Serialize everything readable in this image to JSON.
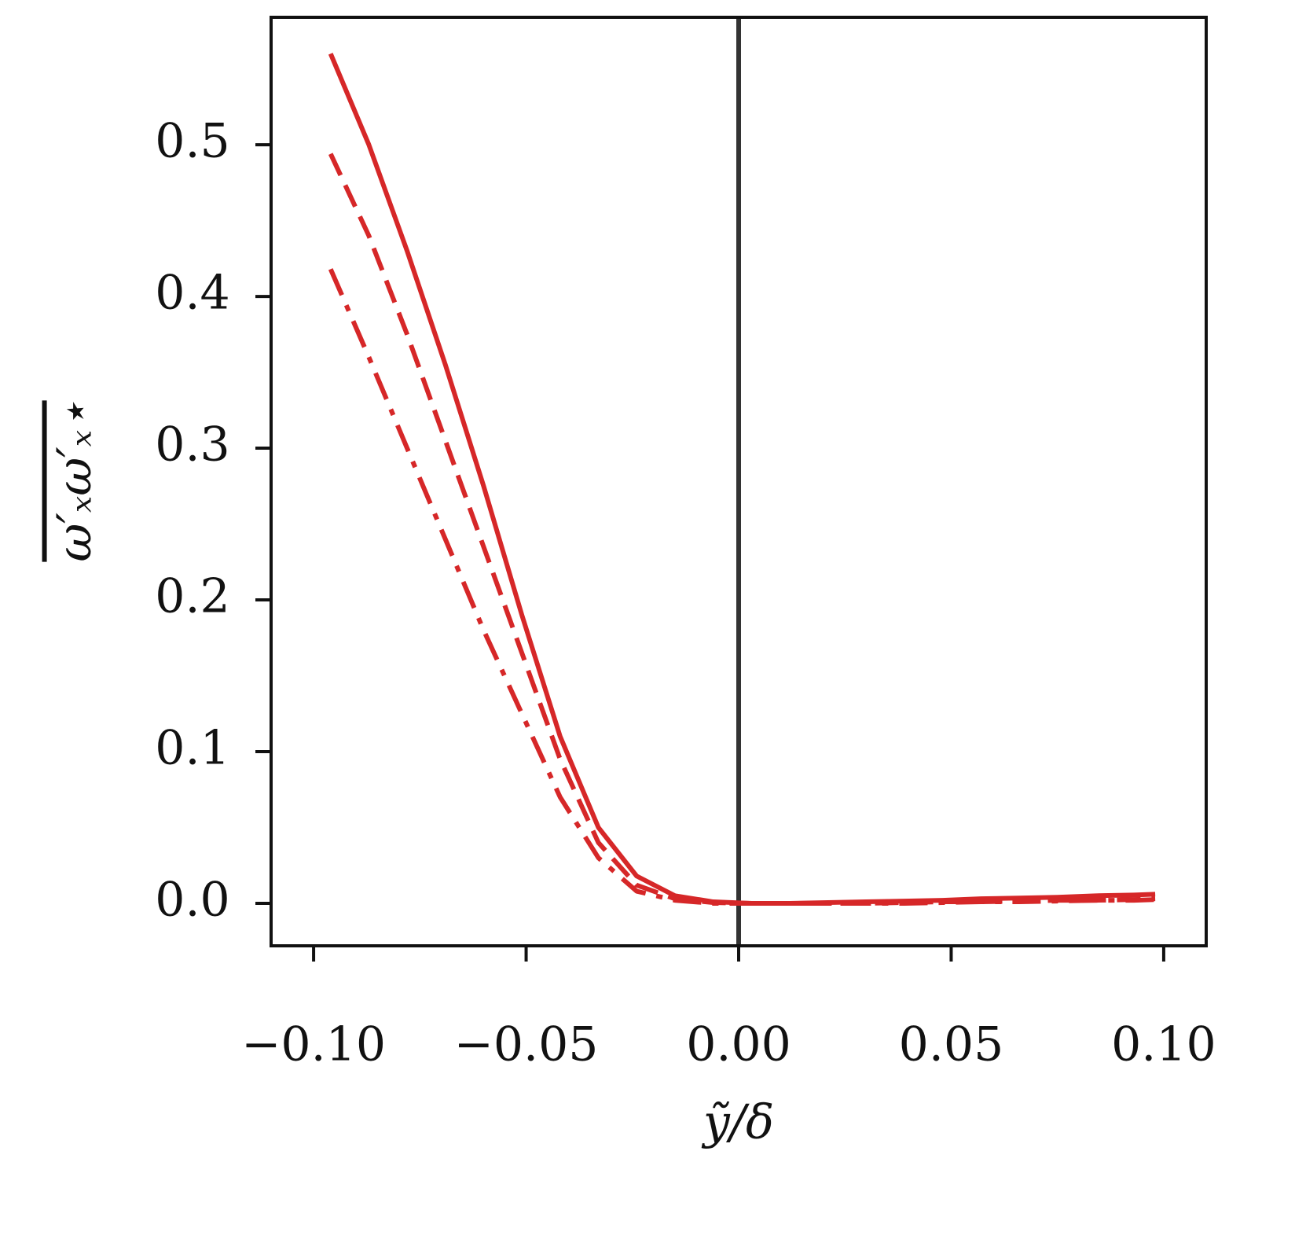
{
  "chart_data": {
    "type": "line",
    "xlabel": "ỹ/δ",
    "ylabel": "ω′ₓω′ₓ⋆",
    "x": [
      -0.096,
      -0.087,
      -0.078,
      -0.069,
      -0.06,
      -0.051,
      -0.042,
      -0.033,
      -0.024,
      -0.015,
      -0.006,
      0.003,
      0.012,
      0.021,
      0.03,
      0.039,
      0.048,
      0.057,
      0.066,
      0.075,
      0.084,
      0.093,
      0.098
    ],
    "series": [
      {
        "color": "#d62728",
        "style": "solid",
        "values": [
          0.56,
          0.5,
          0.43,
          0.355,
          0.275,
          0.19,
          0.11,
          0.05,
          0.018,
          0.005,
          0.001,
          0,
          0,
          0.0005,
          0.001,
          0.0015,
          0.002,
          0.003,
          0.0035,
          0.004,
          0.005,
          0.0055,
          0.006
        ]
      },
      {
        "color": "#d62728",
        "style": "dashed",
        "values": [
          0.494,
          0.44,
          0.375,
          0.305,
          0.235,
          0.165,
          0.095,
          0.04,
          0.012,
          0.003,
          0.0005,
          0,
          0,
          0,
          0,
          0.0005,
          0.001,
          0.001,
          0.0015,
          0.002,
          0.002,
          0.0025,
          0.003
        ]
      },
      {
        "color": "#d62728",
        "style": "dashdot",
        "values": [
          0.418,
          0.36,
          0.3,
          0.24,
          0.18,
          0.125,
          0.07,
          0.03,
          0.008,
          0.002,
          0,
          0,
          0,
          0,
          0,
          0,
          0.0005,
          0.001,
          0.001,
          0.0015,
          0.002,
          0.002,
          0.0025
        ]
      }
    ],
    "vline": {
      "value": 0,
      "color": "#333333"
    },
    "xlim": [
      -0.11,
      0.11
    ],
    "ylim": [
      -0.028,
      0.584
    ],
    "xticks": [
      {
        "value": -0.1,
        "label": "−0.10"
      },
      {
        "value": -0.05,
        "label": "−0.05"
      },
      {
        "value": 0,
        "label": "0.00"
      },
      0.05,
      {
        "value": 0.1,
        "label": "0.10"
      }
    ],
    "yticks": [
      {
        "value": 0,
        "label": "0.0"
      },
      0.1,
      0.2,
      0.3,
      0.4,
      0.5
    ],
    "grid": false
  }
}
